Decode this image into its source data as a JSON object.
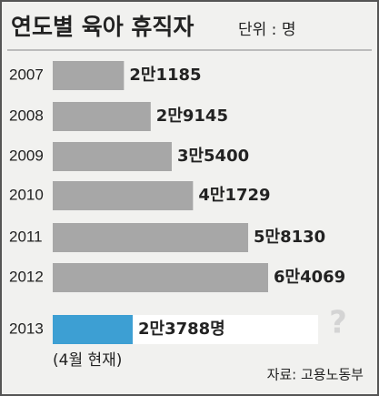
{
  "chart_data": {
    "type": "bar",
    "orientation": "horizontal",
    "title": "연도별 육아 휴직자",
    "subtitle": "단위 : 명",
    "categories": [
      "2007",
      "2008",
      "2009",
      "2010",
      "2011",
      "2012",
      "2013"
    ],
    "values": [
      21185,
      29145,
      35400,
      41729,
      58130,
      64069,
      23788
    ],
    "value_labels": [
      "2만1185",
      "2만9145",
      "3만5400",
      "4만1729",
      "5만8130",
      "6만4069",
      "2만3788명"
    ],
    "colors": [
      "#a7a7a7",
      "#a7a7a7",
      "#a7a7a7",
      "#a7a7a7",
      "#a7a7a7",
      "#a7a7a7",
      "#3d9fd3"
    ],
    "note": "(4월 현재)",
    "annotation": "?",
    "source": "자료: 고용노동부"
  }
}
